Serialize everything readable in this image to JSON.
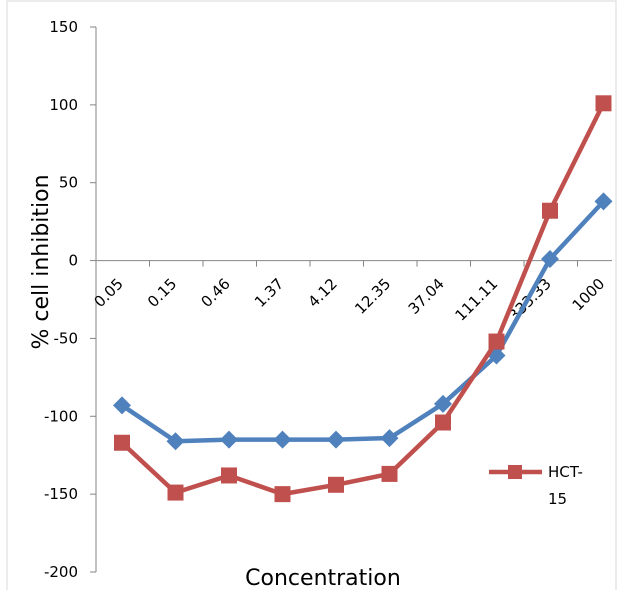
{
  "chart_data": {
    "type": "line",
    "title": "",
    "xlabel": "Concentration",
    "ylabel": "% cell inhibition",
    "categories": [
      "0.05",
      "0.15",
      "0.46",
      "1.37",
      "4.12",
      "12.35",
      "37.04",
      "111.11",
      "333.33",
      "1000"
    ],
    "ylim": [
      -200,
      150
    ],
    "yticks": [
      150,
      100,
      50,
      0,
      -50,
      -100,
      -150,
      -200
    ],
    "grid": false,
    "legend_position": "right",
    "series": [
      {
        "name": "",
        "color": "#4f81bd",
        "marker": "diamond",
        "values": [
          -93,
          -116,
          -115,
          -115,
          -115,
          -114,
          -92,
          -61,
          1,
          38
        ]
      },
      {
        "name": "HCT-15",
        "color": "#c0504d",
        "marker": "square",
        "values": [
          -117,
          -149,
          -138,
          -150,
          -144,
          -137,
          -104,
          -52,
          32,
          101
        ]
      }
    ],
    "legend": [
      {
        "series": 1,
        "lines": [
          "HCT-",
          "15"
        ]
      }
    ]
  }
}
